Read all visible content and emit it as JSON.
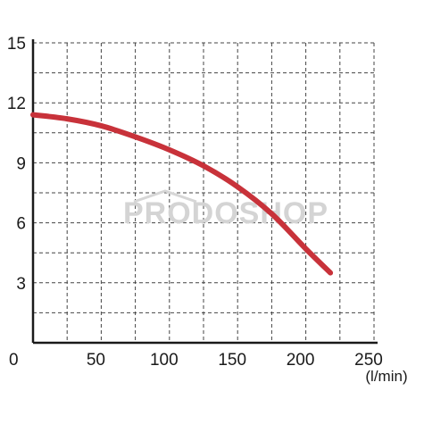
{
  "chart_data": {
    "type": "line",
    "title": "",
    "xlabel": "",
    "ylabel": "",
    "x_unit_label": "(l/min)",
    "origin_label": "0",
    "xlim": [
      0,
      250
    ],
    "ylim": [
      0,
      15
    ],
    "x_ticks": [
      {
        "value": 50,
        "label": "50"
      },
      {
        "value": 100,
        "label": "100"
      },
      {
        "value": 150,
        "label": "150"
      },
      {
        "value": 200,
        "label": "200"
      },
      {
        "value": 250,
        "label": "250"
      }
    ],
    "y_ticks": [
      {
        "value": 3,
        "label": "3"
      },
      {
        "value": 6,
        "label": "6"
      },
      {
        "value": 9,
        "label": "9"
      },
      {
        "value": 12,
        "label": "12"
      },
      {
        "value": 15,
        "label": "15"
      }
    ],
    "grid": true,
    "grid_style": "dashed",
    "x_grid_step": 25,
    "y_grid_step": 1.5,
    "series": [
      {
        "color": "#c8323a",
        "x": [
          0,
          25,
          50,
          75,
          100,
          125,
          150,
          175,
          200,
          218
        ],
        "y": [
          11.4,
          11.2,
          10.85,
          10.3,
          9.65,
          8.85,
          7.8,
          6.45,
          4.7,
          3.5
        ]
      }
    ],
    "watermark": "PRODOSHOP"
  }
}
